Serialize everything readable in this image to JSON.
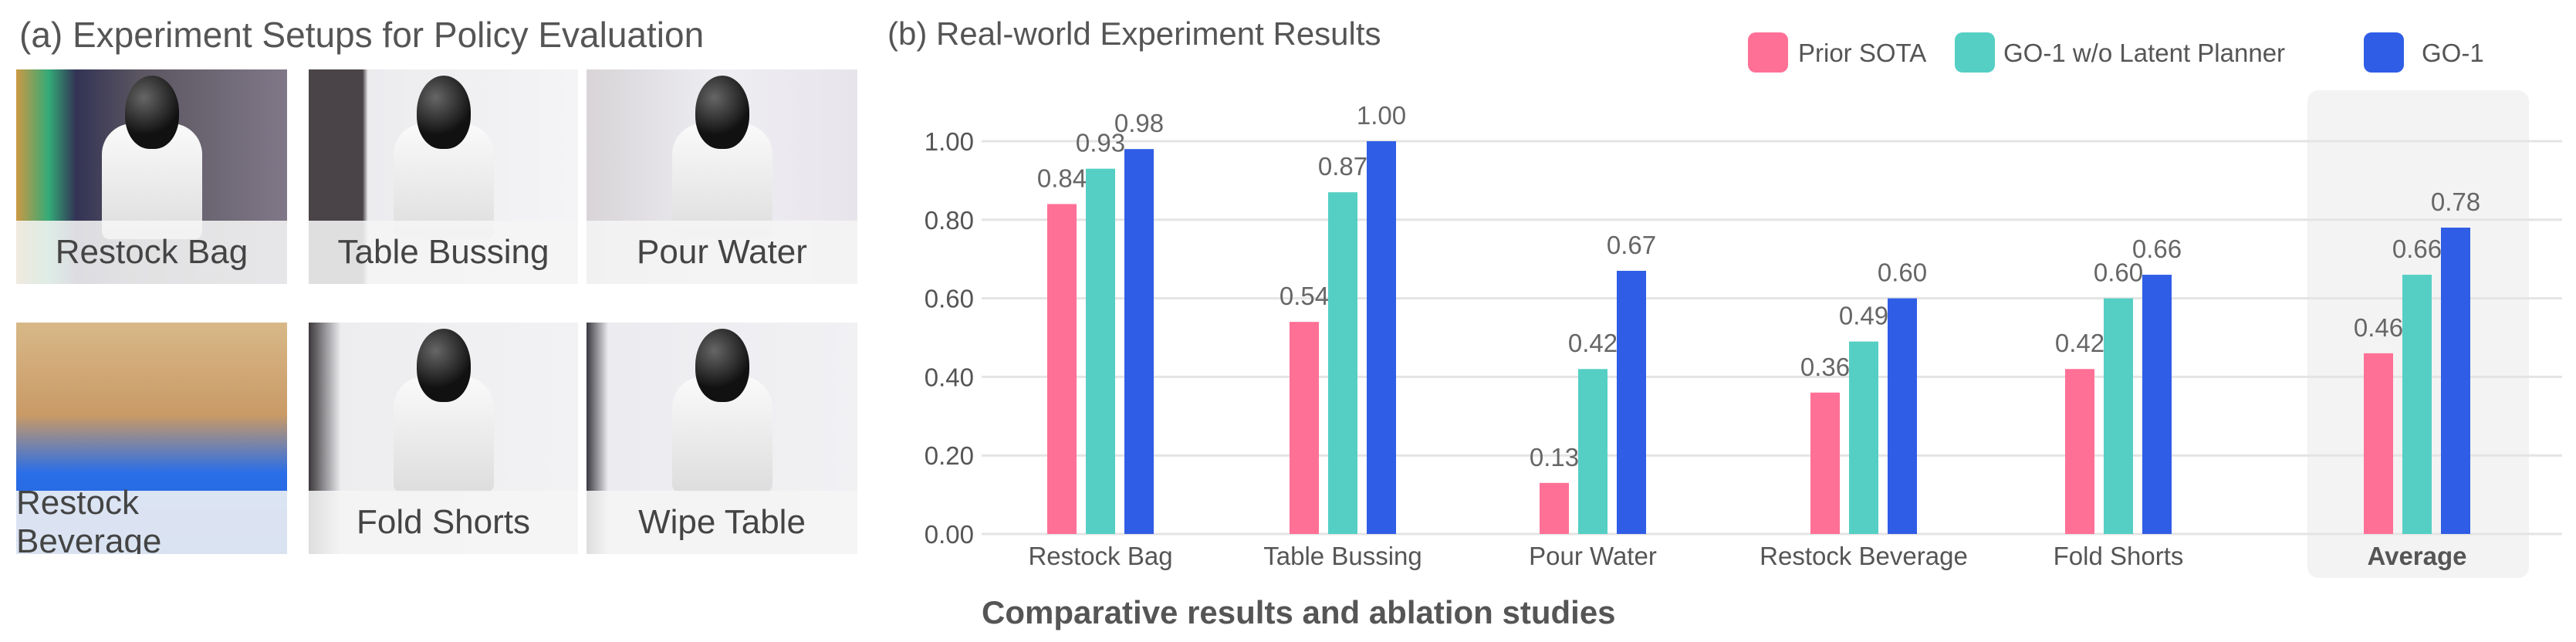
{
  "panel_a": {
    "title": "(a) Experiment Setups for Policy Evaluation",
    "photos": [
      {
        "caption": "Restock Bag"
      },
      {
        "caption": "Table Bussing"
      },
      {
        "caption": "Pour Water"
      },
      {
        "caption": "Restock Beverage"
      },
      {
        "caption": "Fold Shorts"
      },
      {
        "caption": "Wipe Table"
      }
    ]
  },
  "figure_caption": "Comparative results and ablation studies",
  "chart_data": {
    "type": "bar",
    "title": "(b) Real-world Experiment Results",
    "categories": [
      "Restock Bag",
      "Table Bussing",
      "Pour Water",
      "Restock Beverage",
      "Fold Shorts",
      "Average"
    ],
    "highlighted_category": "Average",
    "series": [
      {
        "name": "Prior SOTA",
        "color": "#ff7096",
        "values": [
          0.84,
          0.54,
          0.13,
          0.36,
          0.42,
          0.46
        ]
      },
      {
        "name": "GO-1 w/o Latent Planner",
        "color": "#55cfc4",
        "values": [
          0.93,
          0.87,
          0.42,
          0.49,
          0.6,
          0.66
        ]
      },
      {
        "name": "GO-1",
        "color": "#2f5de6",
        "values": [
          0.98,
          1.0,
          0.67,
          0.6,
          0.66,
          0.78
        ]
      }
    ],
    "value_labels": [
      [
        "0.84",
        "0.54",
        "0.13",
        "0.36",
        "0.42",
        "0.46"
      ],
      [
        "0.93",
        "0.87",
        "0.42",
        "0.49",
        "0.60",
        "0.66"
      ],
      [
        "0.98",
        "1.00",
        "0.67",
        "0.60",
        "0.66",
        "0.78"
      ]
    ],
    "yticks": [
      "0.00",
      "0.20",
      "0.40",
      "0.60",
      "0.80",
      "1.00"
    ],
    "ylim": [
      0,
      1
    ],
    "grid": true,
    "legend_position": "top-right",
    "xlabel": "",
    "ylabel": ""
  }
}
